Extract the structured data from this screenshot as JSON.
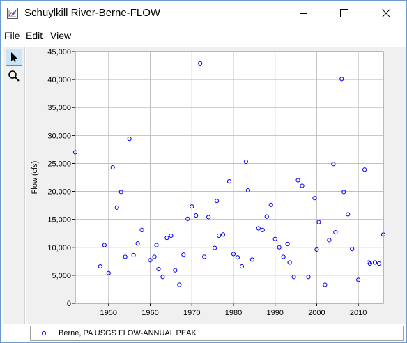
{
  "window": {
    "title": "Schuylkill River-Berne-FLOW"
  },
  "menu": {
    "items": [
      "File",
      "Edit",
      "View"
    ]
  },
  "toolbar": {
    "tools": [
      "pointer-icon",
      "zoom-icon"
    ]
  },
  "colors": {
    "series": "#0000ff",
    "grid": "#c0c0c0",
    "plot_bg": "#ffffff"
  },
  "chart_data": {
    "type": "scatter",
    "ylabel": "Flow (cfs)",
    "xlabel": "",
    "xlim": [
      1942,
      2016
    ],
    "ylim": [
      0,
      45000
    ],
    "x_ticks": [
      1950,
      1960,
      1970,
      1980,
      1990,
      2000,
      2010
    ],
    "y_ticks": [
      0,
      5000,
      10000,
      15000,
      20000,
      25000,
      30000,
      35000,
      40000,
      45000
    ],
    "y_tick_labels": [
      "0",
      "5,000",
      "10,000",
      "15,000",
      "20,000",
      "25,000",
      "30,000",
      "35,000",
      "40,000",
      "45,000"
    ],
    "grid": true,
    "legend_position": "bottom",
    "series": [
      {
        "name": "Berne, PA USGS FLOW-ANNUAL PEAK",
        "marker": "circle",
        "points": [
          [
            1942,
            27000
          ],
          [
            1948,
            6600
          ],
          [
            1949,
            10400
          ],
          [
            1950,
            5400
          ],
          [
            1951,
            24300
          ],
          [
            1952,
            17100
          ],
          [
            1953,
            19900
          ],
          [
            1954,
            8300
          ],
          [
            1955,
            29400
          ],
          [
            1956,
            8600
          ],
          [
            1957,
            10700
          ],
          [
            1958,
            13100
          ],
          [
            1960,
            7700
          ],
          [
            1961,
            8300
          ],
          [
            1961.5,
            10400
          ],
          [
            1962,
            6100
          ],
          [
            1963,
            4700
          ],
          [
            1964,
            11700
          ],
          [
            1965,
            12100
          ],
          [
            1966,
            5900
          ],
          [
            1967,
            3300
          ],
          [
            1968,
            8700
          ],
          [
            1969,
            15100
          ],
          [
            1970,
            17300
          ],
          [
            1971,
            15700
          ],
          [
            1972,
            42900
          ],
          [
            1973,
            8300
          ],
          [
            1974,
            15400
          ],
          [
            1975.5,
            9900
          ],
          [
            1976,
            18300
          ],
          [
            1976.5,
            12100
          ],
          [
            1977.5,
            12300
          ],
          [
            1979,
            21800
          ],
          [
            1980,
            8800
          ],
          [
            1981,
            8200
          ],
          [
            1982,
            6600
          ],
          [
            1983,
            25300
          ],
          [
            1983.5,
            20200
          ],
          [
            1984.5,
            7800
          ],
          [
            1986,
            13400
          ],
          [
            1987,
            13100
          ],
          [
            1988,
            15500
          ],
          [
            1989,
            17600
          ],
          [
            1990,
            11500
          ],
          [
            1991,
            10000
          ],
          [
            1992,
            8300
          ],
          [
            1993,
            10600
          ],
          [
            1993.5,
            7300
          ],
          [
            1994.5,
            4700
          ],
          [
            1995.5,
            22000
          ],
          [
            1996.5,
            21000
          ],
          [
            1998,
            4700
          ],
          [
            1999.5,
            18800
          ],
          [
            2000,
            9600
          ],
          [
            2000.5,
            14500
          ],
          [
            2002,
            3300
          ],
          [
            2003,
            11300
          ],
          [
            2004,
            24900
          ],
          [
            2004.5,
            12700
          ],
          [
            2006,
            40100
          ],
          [
            2006.5,
            19900
          ],
          [
            2007.5,
            15900
          ],
          [
            2008.5,
            9700
          ],
          [
            2010,
            4200
          ],
          [
            2011.5,
            23900
          ],
          [
            2012.5,
            7300
          ],
          [
            2012.8,
            7100
          ],
          [
            2014,
            7300
          ],
          [
            2015,
            7100
          ],
          [
            2016,
            12300
          ]
        ]
      }
    ]
  }
}
